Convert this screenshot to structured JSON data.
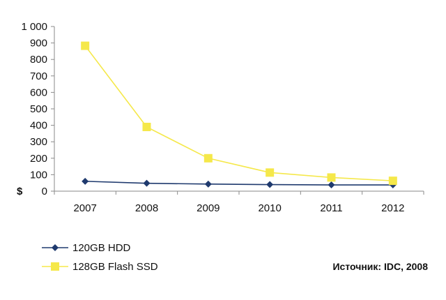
{
  "chart_data": {
    "type": "line",
    "x": [
      "2007",
      "2008",
      "2009",
      "2010",
      "2011",
      "2012"
    ],
    "y_ticks": [
      "0",
      "100",
      "200",
      "300",
      "400",
      "500",
      "600",
      "700",
      "800",
      "900",
      "1 000"
    ],
    "ylim": [
      0,
      1000
    ],
    "ylabel": "$",
    "grid": false,
    "legend_position": "bottom-left",
    "series": [
      {
        "name": "120GB HDD",
        "values": [
          60,
          48,
          43,
          40,
          38,
          38
        ],
        "color": "#1f3a6e",
        "marker": "diamond"
      },
      {
        "name": "128GB Flash SSD",
        "values": [
          883,
          390,
          200,
          113,
          83,
          63
        ],
        "color": "#f5e84a",
        "marker": "square"
      }
    ],
    "source": "Источник: IDC, 2008"
  }
}
